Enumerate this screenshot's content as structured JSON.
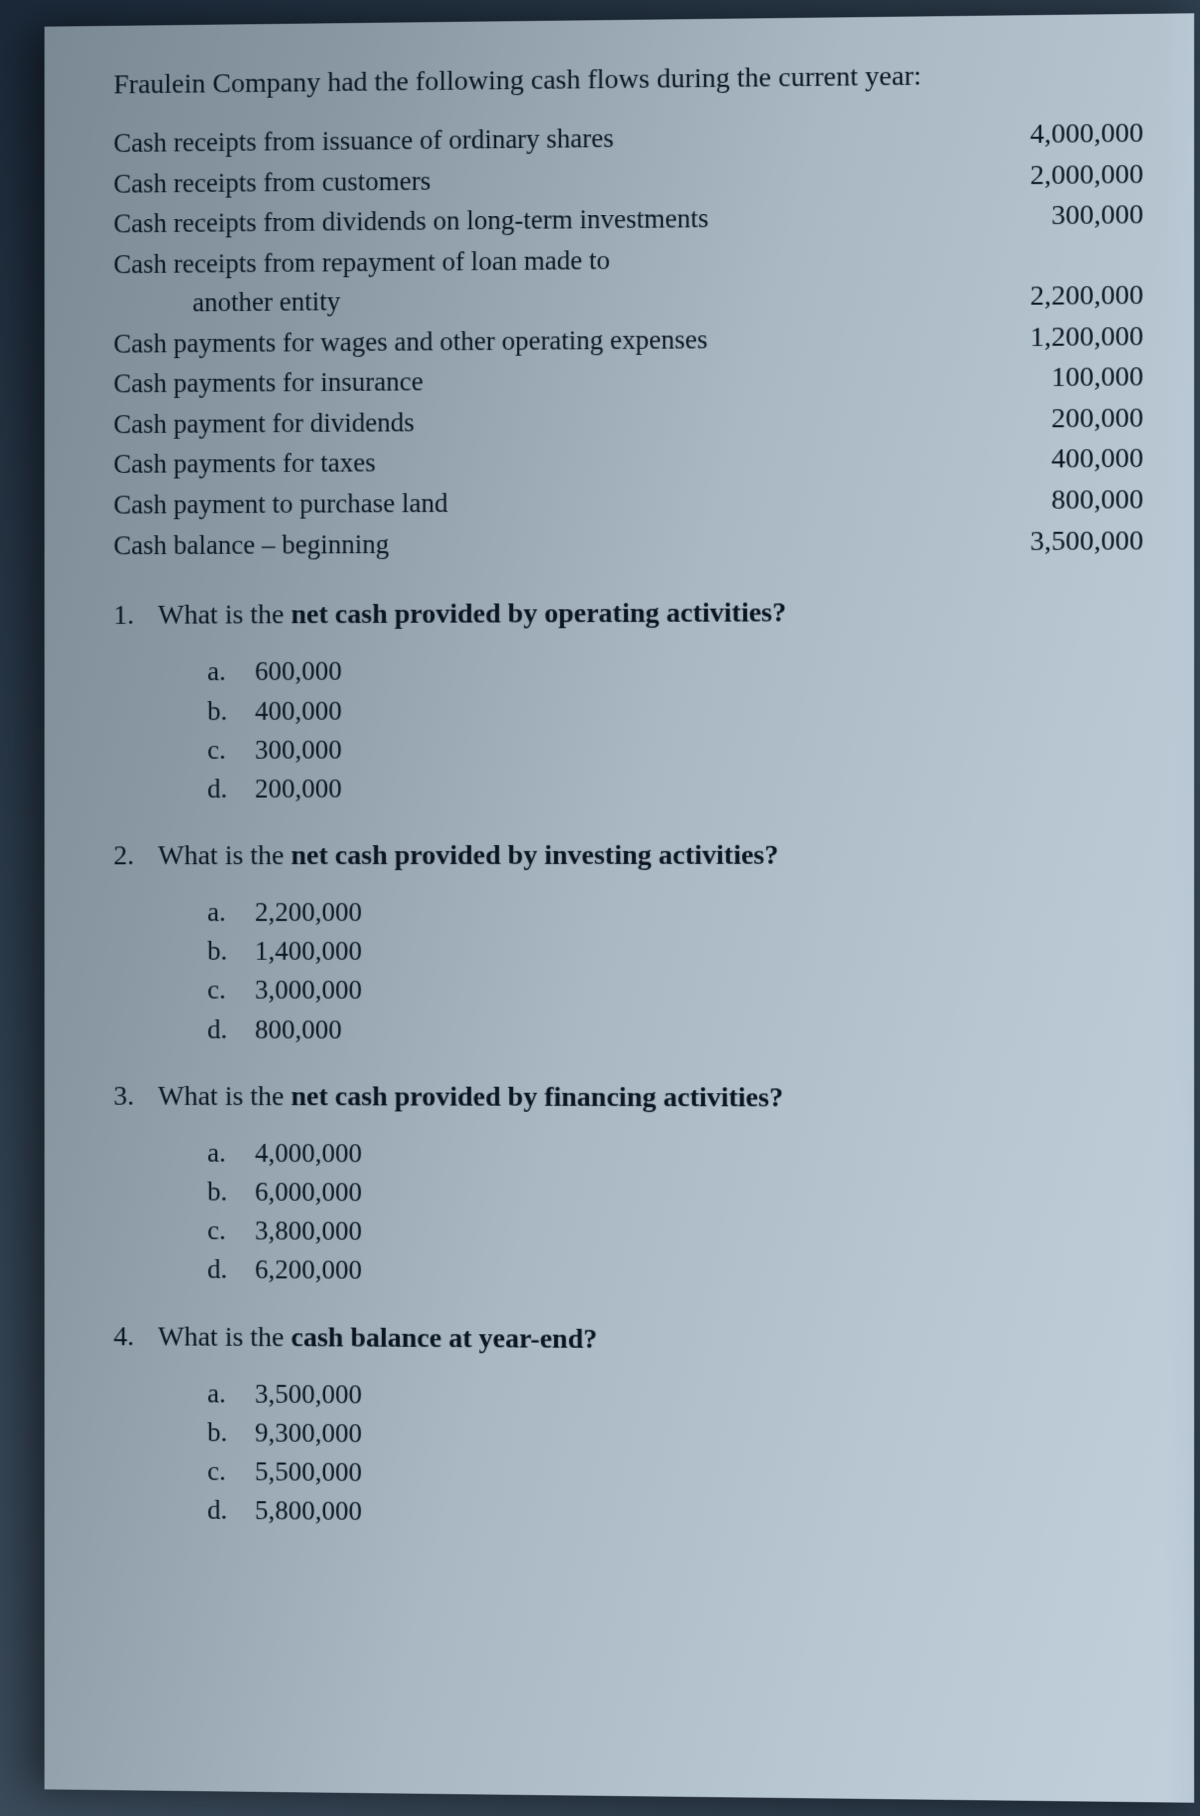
{
  "intro": "Fraulein Company had the following cash flows during the current year:",
  "cashflows": [
    {
      "desc": "Cash receipts from issuance of ordinary shares",
      "amount": "4,000,000",
      "indent": false
    },
    {
      "desc": "Cash receipts from customers",
      "amount": "2,000,000",
      "indent": false
    },
    {
      "desc": "Cash receipts from dividends on long-term investments",
      "amount": "300,000",
      "indent": false
    },
    {
      "desc": "Cash receipts from repayment of loan made to",
      "amount": "",
      "indent": false
    },
    {
      "desc": "another entity",
      "amount": "2,200,000",
      "indent": true
    },
    {
      "desc": "Cash payments for wages and other operating expenses",
      "amount": "1,200,000",
      "indent": false
    },
    {
      "desc": "Cash payments for insurance",
      "amount": "100,000",
      "indent": false
    },
    {
      "desc": "Cash payment for dividends",
      "amount": "200,000",
      "indent": false
    },
    {
      "desc": "Cash payments for taxes",
      "amount": "400,000",
      "indent": false
    },
    {
      "desc": "Cash payment to purchase land",
      "amount": "800,000",
      "indent": false
    },
    {
      "desc": "Cash balance – beginning",
      "amount": "3,500,000",
      "indent": false
    }
  ],
  "questions": [
    {
      "num": "1.",
      "prefix": "What is the ",
      "bold": "net cash provided by operating activities?",
      "options": [
        {
          "letter": "a.",
          "value": "600,000"
        },
        {
          "letter": "b.",
          "value": "400,000"
        },
        {
          "letter": "c.",
          "value": "300,000"
        },
        {
          "letter": "d.",
          "value": "200,000"
        }
      ]
    },
    {
      "num": "2.",
      "prefix": "What is the ",
      "bold": "net cash provided by investing activities?",
      "options": [
        {
          "letter": "a.",
          "value": "2,200,000"
        },
        {
          "letter": "b.",
          "value": "1,400,000"
        },
        {
          "letter": "c.",
          "value": "3,000,000"
        },
        {
          "letter": "d.",
          "value": "   800,000"
        }
      ]
    },
    {
      "num": "3.",
      "prefix": "What is the ",
      "bold": "net cash provided by financing activities?",
      "options": [
        {
          "letter": "a.",
          "value": "4,000,000"
        },
        {
          "letter": "b.",
          "value": "6,000,000"
        },
        {
          "letter": "c.",
          "value": "3,800,000"
        },
        {
          "letter": "d.",
          "value": "6,200,000"
        }
      ]
    },
    {
      "num": "4.",
      "prefix": "What is the ",
      "bold": "cash balance at year-end?",
      "options": [
        {
          "letter": "a.",
          "value": "3,500,000"
        },
        {
          "letter": "b.",
          "value": "9,300,000"
        },
        {
          "letter": "c.",
          "value": "5,500,000"
        },
        {
          "letter": "d.",
          "value": "5,800,000"
        }
      ]
    }
  ]
}
